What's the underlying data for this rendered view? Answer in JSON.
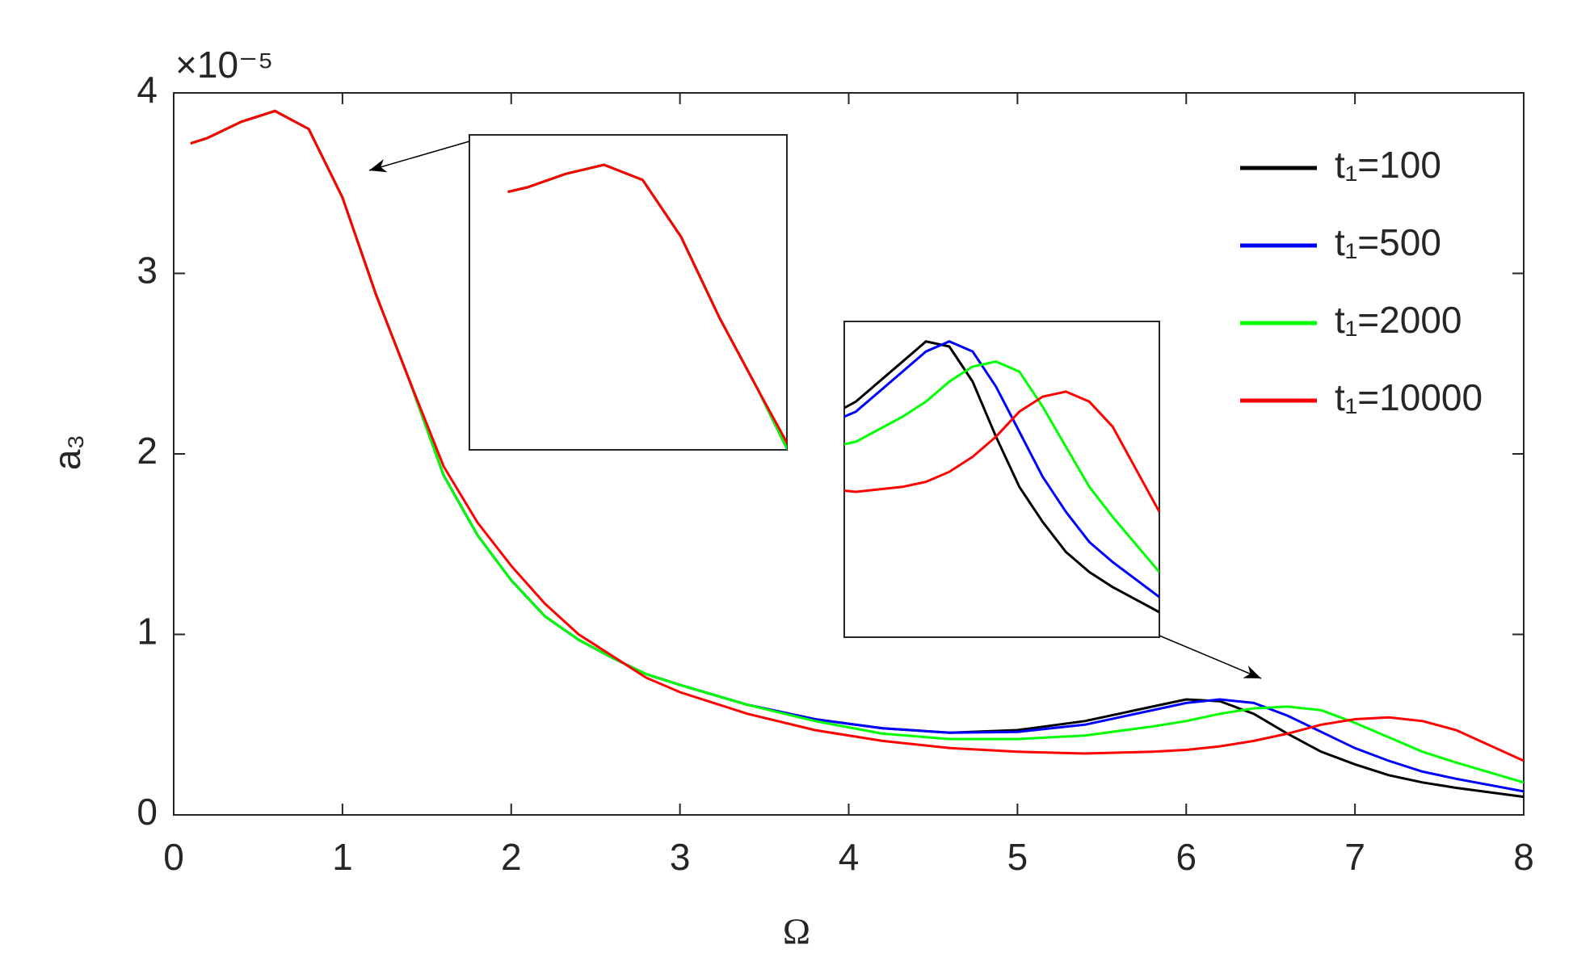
{
  "chart_data": {
    "type": "line",
    "x_label": "Ω",
    "y_label": "a₃",
    "y_multiplier": "×10⁻⁵",
    "x": [
      0.1,
      0.2,
      0.4,
      0.6,
      0.8,
      1.0,
      1.2,
      1.4,
      1.6,
      1.8,
      2.0,
      2.2,
      2.4,
      2.6,
      2.8,
      3.0,
      3.4,
      3.8,
      4.2,
      4.6,
      5.0,
      5.4,
      5.8,
      6.0,
      6.2,
      6.4,
      6.6,
      6.8,
      7.0,
      7.2,
      7.4,
      7.6,
      8.0
    ],
    "series": [
      {
        "name": "t₁=100",
        "color": "#000000",
        "values": [
          3.72,
          3.75,
          3.84,
          3.9,
          3.8,
          3.42,
          2.88,
          2.4,
          1.88,
          1.55,
          1.3,
          1.1,
          0.97,
          0.87,
          0.78,
          0.72,
          0.61,
          0.53,
          0.48,
          0.455,
          0.47,
          0.52,
          0.6,
          0.64,
          0.63,
          0.56,
          0.45,
          0.35,
          0.28,
          0.22,
          0.18,
          0.15,
          0.1
        ]
      },
      {
        "name": "t₁=500",
        "color": "#0000ff",
        "values": [
          3.72,
          3.75,
          3.84,
          3.9,
          3.8,
          3.42,
          2.88,
          2.4,
          1.88,
          1.55,
          1.3,
          1.1,
          0.97,
          0.87,
          0.78,
          0.72,
          0.61,
          0.53,
          0.48,
          0.455,
          0.46,
          0.5,
          0.58,
          0.62,
          0.64,
          0.62,
          0.55,
          0.46,
          0.37,
          0.3,
          0.24,
          0.2,
          0.13
        ]
      },
      {
        "name": "t₁=2000",
        "color": "#00ff00",
        "values": [
          3.72,
          3.75,
          3.84,
          3.9,
          3.8,
          3.42,
          2.88,
          2.4,
          1.88,
          1.55,
          1.3,
          1.1,
          0.97,
          0.87,
          0.78,
          0.72,
          0.61,
          0.52,
          0.45,
          0.42,
          0.42,
          0.44,
          0.49,
          0.52,
          0.56,
          0.59,
          0.6,
          0.58,
          0.51,
          0.43,
          0.35,
          0.29,
          0.18
        ]
      },
      {
        "name": "t₁=10000",
        "color": "#ff0000",
        "values": [
          3.72,
          3.75,
          3.84,
          3.9,
          3.8,
          3.42,
          2.88,
          2.4,
          1.93,
          1.62,
          1.38,
          1.17,
          1.0,
          0.88,
          0.76,
          0.68,
          0.56,
          0.47,
          0.41,
          0.37,
          0.35,
          0.34,
          0.35,
          0.36,
          0.38,
          0.41,
          0.45,
          0.5,
          0.53,
          0.54,
          0.52,
          0.47,
          0.3
        ]
      }
    ],
    "xlim": [
      0,
      8
    ],
    "ylim": [
      0,
      4
    ],
    "xticks": [
      0,
      1,
      2,
      3,
      4,
      5,
      6,
      7,
      8
    ],
    "yticks": [
      0,
      1,
      2,
      3,
      4
    ],
    "legend": "upper right",
    "insets": [
      {
        "xlim": [
          -0.1,
          1.55
        ],
        "ylim": [
          2,
          4.1
        ]
      },
      {
        "xlim": [
          5.3,
          8
        ],
        "ylim": [
          0.05,
          0.68
        ]
      }
    ]
  }
}
